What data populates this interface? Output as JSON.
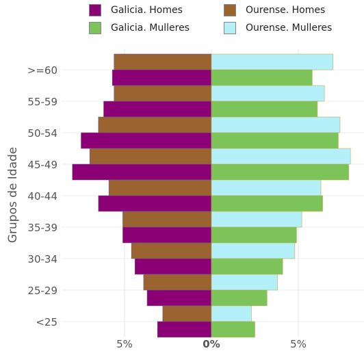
{
  "chart_data": {
    "type": "bar",
    "orientation": "horizontal-population-pyramid",
    "ylabel": "Grupos de Idade",
    "categories": [
      ">=60",
      "55-59",
      "50-54",
      "45-49",
      "40-44",
      "35-39",
      "30-34",
      "25-29",
      "<25"
    ],
    "series": [
      {
        "name": "Galicia. Homes",
        "side": "left",
        "color": "#8B0075",
        "values": [
          5.7,
          6.2,
          7.5,
          8.0,
          6.5,
          5.1,
          4.4,
          3.7,
          3.1
        ]
      },
      {
        "name": "Ourense. Homes",
        "side": "left",
        "color": "#9A6330",
        "values": [
          5.6,
          5.6,
          6.5,
          7.0,
          5.9,
          5.1,
          4.6,
          3.9,
          2.8
        ]
      },
      {
        "name": "Galicia. Mulleres",
        "side": "right",
        "color": "#7CC45A",
        "values": [
          5.8,
          6.1,
          7.3,
          7.9,
          6.4,
          4.9,
          4.1,
          3.2,
          2.5
        ]
      },
      {
        "name": "Ourense. Mulleres",
        "side": "right",
        "color": "#B3F0FA",
        "values": [
          7.0,
          6.5,
          7.4,
          8.0,
          6.3,
          5.2,
          4.8,
          3.8,
          2.3
        ]
      }
    ],
    "xticks": [
      "5%",
      "0%",
      "5%"
    ],
    "legend_position": "top",
    "grid": true
  }
}
